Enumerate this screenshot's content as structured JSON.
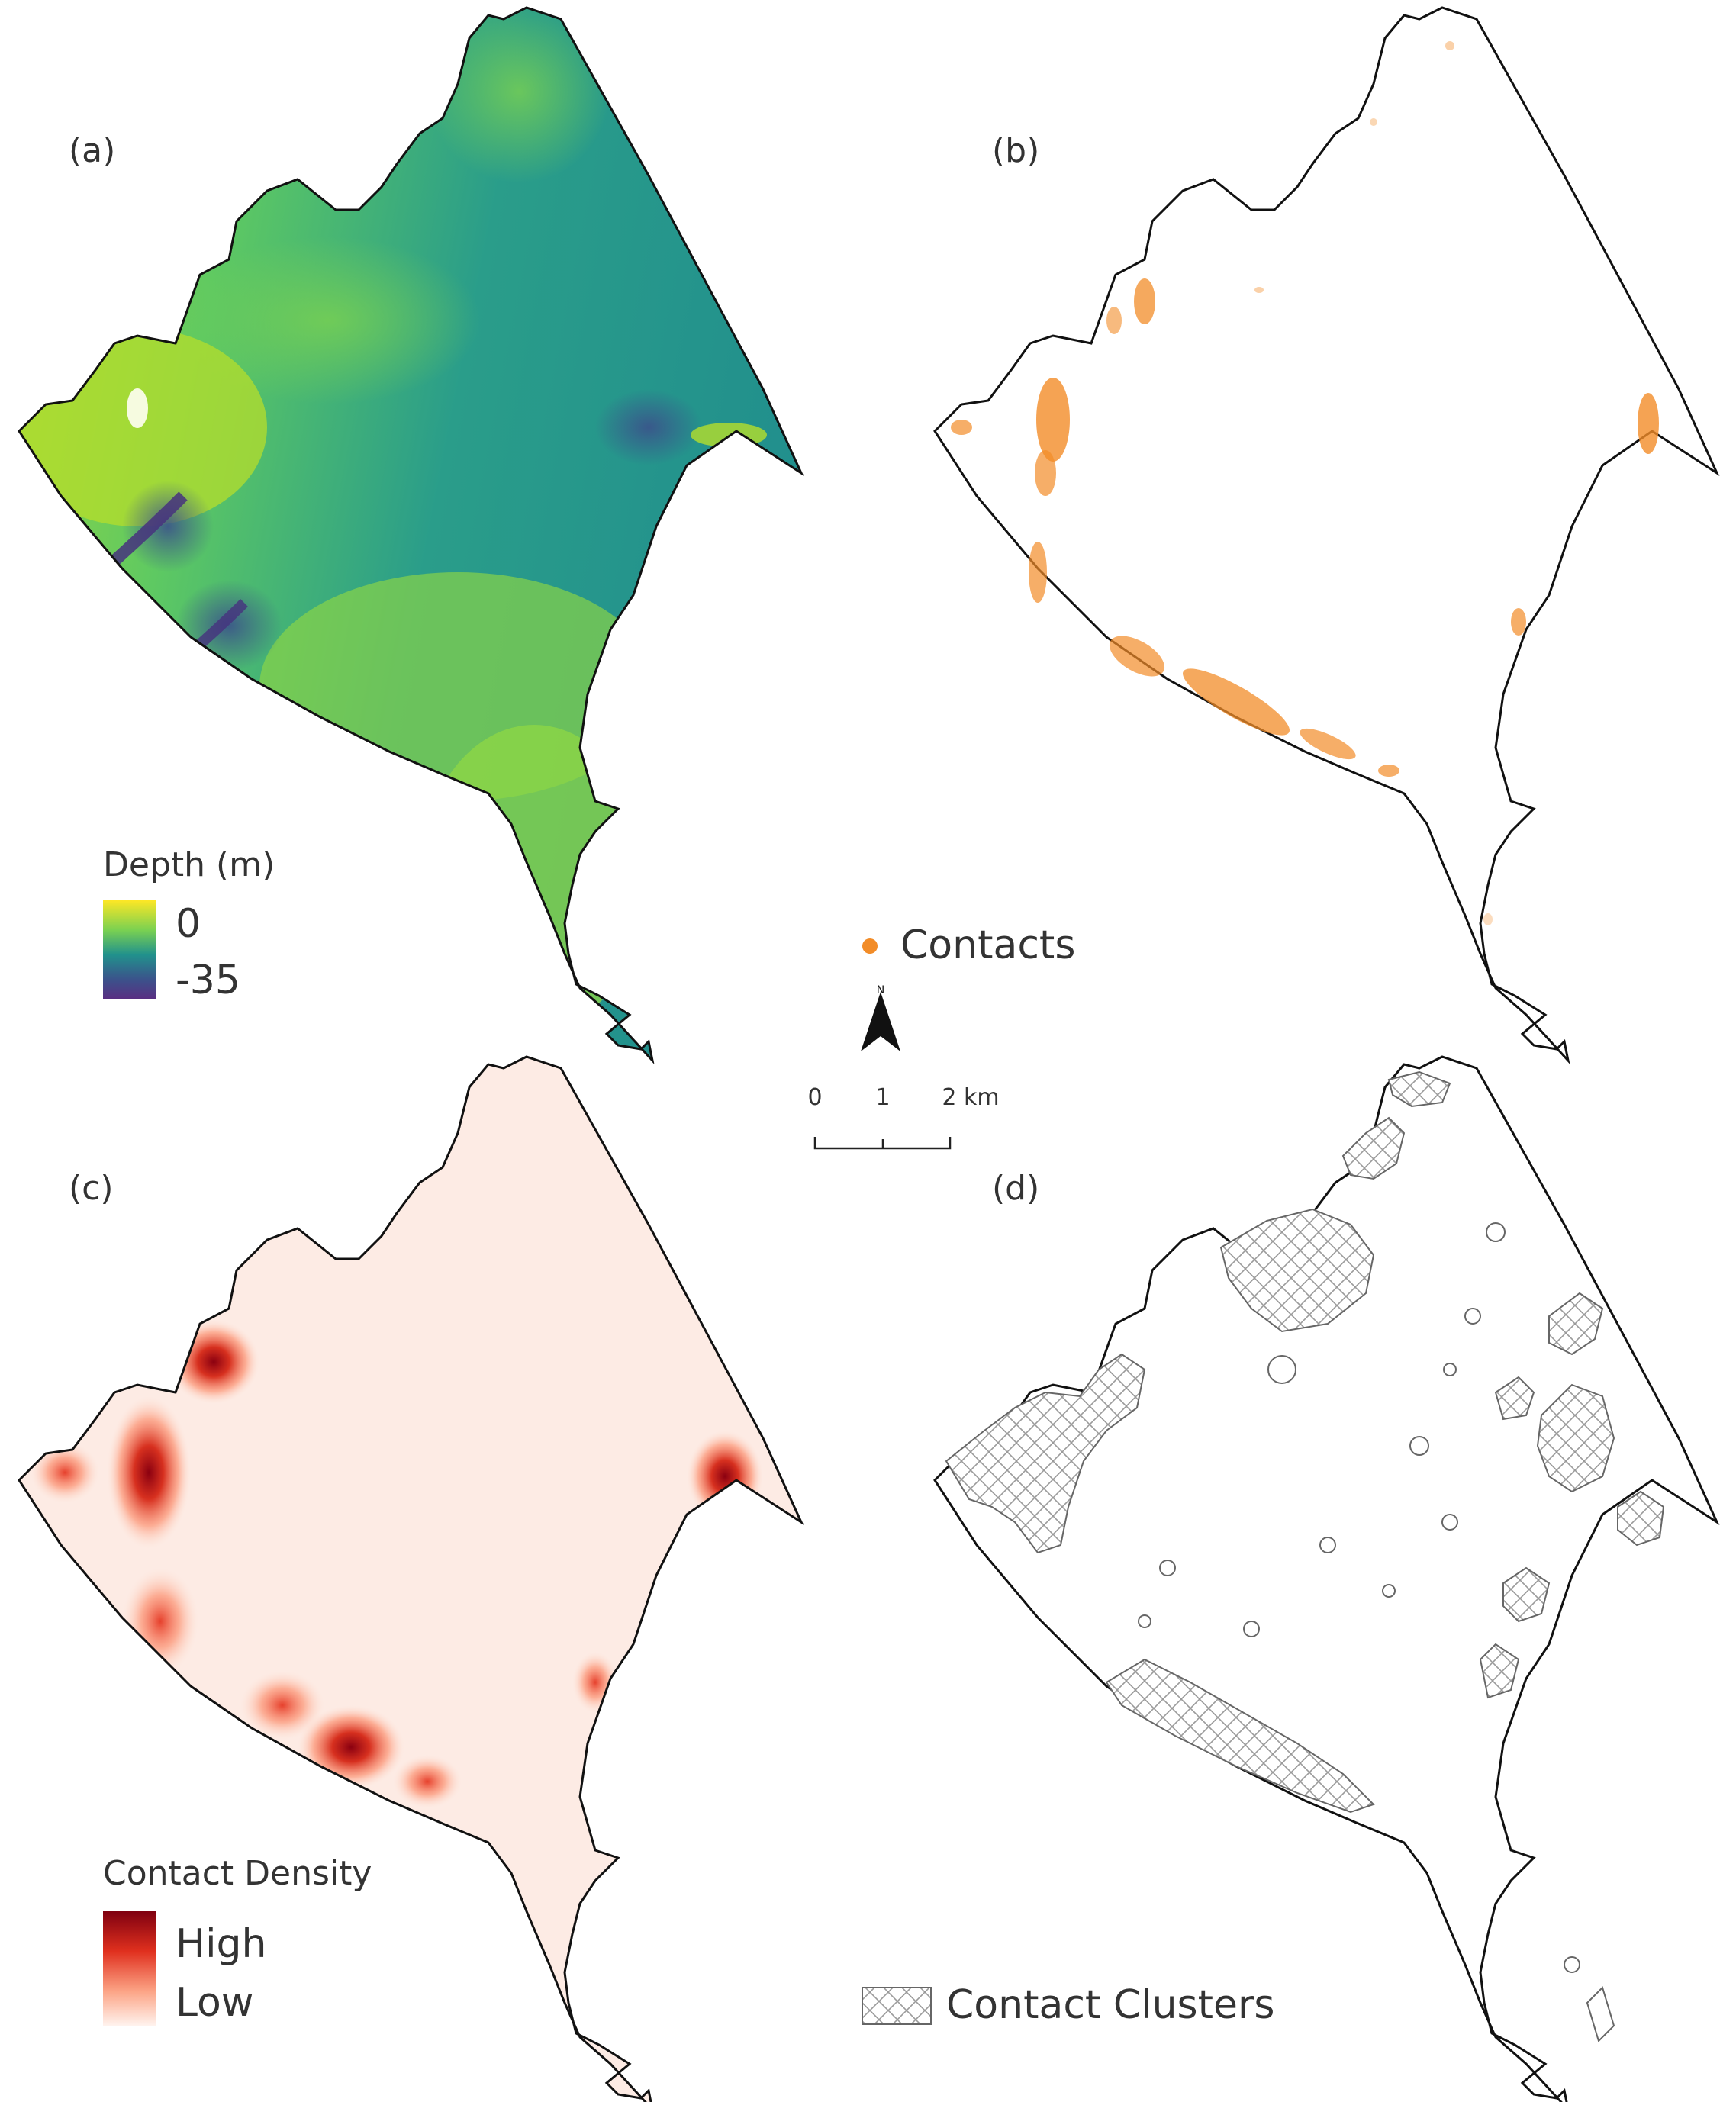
{
  "panels": {
    "a": {
      "label": "(a)",
      "legend_title": "Depth (m)",
      "legend_max": "0",
      "legend_min": "-35",
      "ramp_colors": [
        "#fde725",
        "#a0da39",
        "#4ac16d",
        "#1fa187",
        "#277f8e",
        "#365c8d",
        "#46327e",
        "#440154"
      ]
    },
    "b": {
      "label": "(b)",
      "legend_label": "Contacts",
      "point_color": "#f28c28"
    },
    "c": {
      "label": "(c)",
      "legend_title": "Contact Density",
      "legend_high": "High",
      "legend_low": "Low",
      "ramp_colors": [
        "#67000d",
        "#cb181d",
        "#fb6a4a",
        "#fcbba1",
        "#fff5f0"
      ]
    },
    "d": {
      "label": "(d)",
      "legend_label": "Contact Clusters"
    }
  },
  "north_arrow": {
    "label": "N"
  },
  "scale_bar": {
    "ticks": [
      "0",
      "1",
      "2 km"
    ]
  }
}
